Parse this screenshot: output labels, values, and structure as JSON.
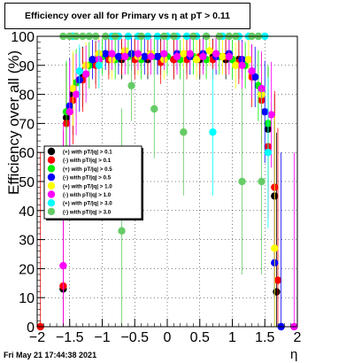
{
  "chart_data": {
    "type": "scatter",
    "title": "Efficiency over all for Primary vs   η at pT > 0.11",
    "xlabel": "η",
    "ylabel": "Efficiency over all (%)",
    "xlim": [
      -2,
      2
    ],
    "ylim": [
      0,
      100
    ],
    "x_ticks": [
      "−2",
      "−1.5",
      "−1",
      "−0.5",
      "0",
      "0.5",
      "1",
      "1.5",
      "2"
    ],
    "y_ticks": [
      "0",
      "10",
      "20",
      "30",
      "40",
      "50",
      "60",
      "70",
      "80",
      "90",
      "100"
    ],
    "grid": true,
    "legend_position": "middle-left",
    "series": [
      {
        "name": "(+) with pT/|q| > 0.1",
        "color": "#000000",
        "points": [
          [
            -1.6,
            13
          ],
          [
            -1.55,
            72
          ],
          [
            -1.45,
            80
          ],
          [
            -1.3,
            86
          ],
          [
            -1.1,
            91
          ],
          [
            -0.9,
            93
          ],
          [
            -0.7,
            92
          ],
          [
            -0.5,
            93
          ],
          [
            -0.3,
            92
          ],
          [
            -0.1,
            93
          ],
          [
            0.1,
            92
          ],
          [
            0.3,
            93
          ],
          [
            0.5,
            92
          ],
          [
            0.7,
            93
          ],
          [
            0.9,
            92
          ],
          [
            1.1,
            92
          ],
          [
            1.3,
            88
          ],
          [
            1.45,
            80
          ],
          [
            1.55,
            68
          ],
          [
            1.65,
            45
          ],
          [
            1.68,
            12
          ]
        ]
      },
      {
        "name": "(-) with pT/|q| > 0.1",
        "color": "#ff0000",
        "points": [
          [
            -1.95,
            0
          ],
          [
            -1.6,
            14
          ],
          [
            -1.55,
            70
          ],
          [
            -1.45,
            78
          ],
          [
            -1.3,
            85
          ],
          [
            -1.1,
            90
          ],
          [
            -0.9,
            92
          ],
          [
            -0.7,
            93
          ],
          [
            -0.5,
            92
          ],
          [
            -0.3,
            93
          ],
          [
            -0.1,
            91
          ],
          [
            0.1,
            92
          ],
          [
            0.3,
            92
          ],
          [
            0.5,
            93
          ],
          [
            0.7,
            92
          ],
          [
            0.9,
            93
          ],
          [
            1.1,
            91
          ],
          [
            1.3,
            86
          ],
          [
            1.45,
            78
          ],
          [
            1.55,
            62
          ],
          [
            1.65,
            48
          ],
          [
            1.7,
            16
          ]
        ]
      },
      {
        "name": "(+) with pT/|q| > 0.5",
        "color": "#00ee00",
        "points": [
          [
            -1.55,
            74
          ],
          [
            -1.4,
            84
          ],
          [
            -1.2,
            90
          ],
          [
            -1.0,
            93
          ],
          [
            -0.8,
            92
          ],
          [
            -0.6,
            93
          ],
          [
            -0.4,
            92
          ],
          [
            -0.2,
            93
          ],
          [
            0.0,
            93
          ],
          [
            0.2,
            92
          ],
          [
            0.4,
            93
          ],
          [
            0.6,
            92
          ],
          [
            0.8,
            93
          ],
          [
            1.0,
            92
          ],
          [
            1.2,
            90
          ],
          [
            1.4,
            83
          ],
          [
            1.55,
            70
          ]
        ]
      },
      {
        "name": "(-) with pT/|q| > 0.5",
        "color": "#0000ff",
        "points": [
          [
            -1.5,
            76
          ],
          [
            -1.35,
            85
          ],
          [
            -1.15,
            92
          ],
          [
            -0.95,
            94
          ],
          [
            -0.75,
            93
          ],
          [
            -0.55,
            94
          ],
          [
            -0.35,
            93
          ],
          [
            -0.15,
            93
          ],
          [
            0.15,
            94
          ],
          [
            0.35,
            93
          ],
          [
            0.55,
            94
          ],
          [
            0.75,
            93
          ],
          [
            0.95,
            94
          ],
          [
            1.15,
            92
          ],
          [
            1.35,
            86
          ],
          [
            1.5,
            74
          ],
          [
            1.65,
            22
          ],
          [
            1.75,
            0
          ]
        ]
      },
      {
        "name": "(+) with pT/|q| > 1.0",
        "color": "#ffff00",
        "points": [
          [
            -1.45,
            82
          ],
          [
            -1.25,
            90
          ],
          [
            -1.05,
            94
          ],
          [
            -0.85,
            92
          ],
          [
            -0.65,
            95
          ],
          [
            -0.45,
            93
          ],
          [
            -0.25,
            94
          ],
          [
            -0.05,
            92
          ],
          [
            0.25,
            94
          ],
          [
            0.45,
            92
          ],
          [
            0.65,
            95
          ],
          [
            0.85,
            93
          ],
          [
            1.05,
            90
          ],
          [
            1.25,
            92
          ],
          [
            1.45,
            80
          ],
          [
            1.65,
            27
          ]
        ]
      },
      {
        "name": "(-) with pT/|q| > 1.0",
        "color": "#ff00ff",
        "points": [
          [
            -1.6,
            21
          ],
          [
            -1.5,
            74
          ],
          [
            -1.4,
            80
          ],
          [
            -1.25,
            87
          ],
          [
            -1.05,
            92
          ],
          [
            -0.85,
            94
          ],
          [
            -0.65,
            93
          ],
          [
            -0.45,
            94
          ],
          [
            -0.25,
            93
          ],
          [
            -0.05,
            94
          ],
          [
            0.15,
            93
          ],
          [
            0.35,
            94
          ],
          [
            0.55,
            93
          ],
          [
            0.75,
            94
          ],
          [
            0.95,
            93
          ],
          [
            1.15,
            90
          ],
          [
            1.3,
            88
          ],
          [
            1.45,
            82
          ],
          [
            1.6,
            73
          ],
          [
            1.95,
            0
          ]
        ]
      },
      {
        "name": "(+) with pT/|q| > 3.0",
        "color": "#00ffff",
        "points": [
          [
            -1.45,
            100
          ],
          [
            -1.35,
            88
          ],
          [
            -1.2,
            100
          ],
          [
            -1.05,
            90
          ],
          [
            -0.85,
            100
          ],
          [
            -0.75,
            100
          ],
          [
            -0.6,
            100
          ],
          [
            -0.45,
            100
          ],
          [
            -0.3,
            100
          ],
          [
            -0.15,
            100
          ],
          [
            0.0,
            100
          ],
          [
            0.15,
            100
          ],
          [
            0.3,
            100
          ],
          [
            0.45,
            100
          ],
          [
            0.6,
            100
          ],
          [
            0.7,
            67
          ],
          [
            0.85,
            100
          ],
          [
            0.95,
            100
          ],
          [
            1.1,
            100
          ],
          [
            1.25,
            100
          ],
          [
            1.4,
            100
          ],
          [
            1.5,
            100
          ],
          [
            1.55,
            60
          ]
        ]
      },
      {
        "name": "(-) with pT/|q| > 3.0",
        "color": "#66cc66",
        "points": [
          [
            -1.6,
            100
          ],
          [
            -1.5,
            100
          ],
          [
            -1.4,
            100
          ],
          [
            -1.3,
            100
          ],
          [
            -1.2,
            100
          ],
          [
            -1.1,
            100
          ],
          [
            -0.95,
            100
          ],
          [
            -0.8,
            100
          ],
          [
            -0.7,
            33
          ],
          [
            -0.55,
            83
          ],
          [
            -0.4,
            100
          ],
          [
            -0.2,
            75
          ],
          [
            -0.05,
            100
          ],
          [
            0.1,
            100
          ],
          [
            0.25,
            67
          ],
          [
            0.4,
            100
          ],
          [
            0.6,
            100
          ],
          [
            0.8,
            100
          ],
          [
            0.95,
            100
          ],
          [
            1.05,
            100
          ],
          [
            1.15,
            50
          ],
          [
            1.3,
            100
          ],
          [
            1.4,
            100
          ],
          [
            1.45,
            50
          ]
        ]
      }
    ]
  },
  "footer": {
    "timestamp": "Fri May 21 17:44:38 2021"
  }
}
